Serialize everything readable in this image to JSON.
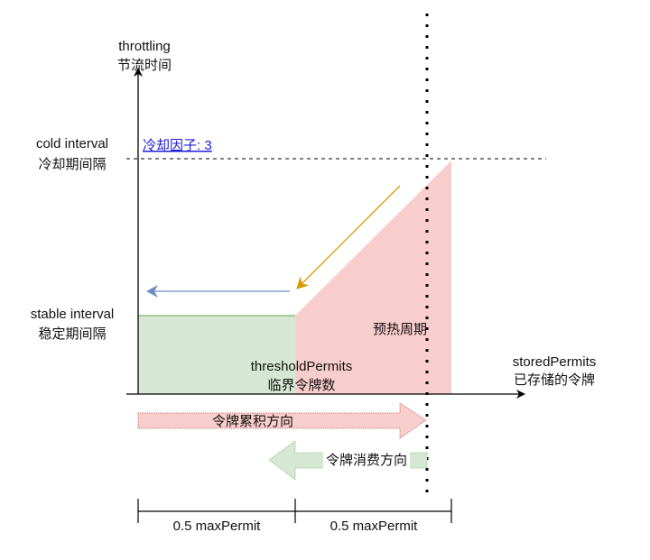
{
  "y_axis": {
    "label_en": "throttling",
    "label_zh": "节流时间"
  },
  "x_axis": {
    "label_en": "storedPermits",
    "label_zh": "已存储的令牌"
  },
  "cold_interval": {
    "label_en": "cold interval",
    "label_zh": "冷却期间隔"
  },
  "cold_factor": "冷却因子: 3",
  "stable_interval": {
    "label_en": "stable interval",
    "label_zh": "稳定期间隔"
  },
  "warmup_label": "预热周期",
  "threshold": {
    "label_en": "thresholdPermits",
    "label_zh": "临界令牌数"
  },
  "accumulate_direction": "令牌累积方向",
  "consume_direction": "令牌消费方向",
  "dimension": {
    "left": "0.5 maxPermit",
    "right": "0.5 maxPermit"
  },
  "colors": {
    "stable_fill": "#d5e8d4",
    "stable_stroke": "#82b366",
    "warmup_fill": "#f8cecc",
    "warmup_stroke": "#b85450",
    "gold_arrow": "#d79b00",
    "blue_arrow": "#6c8ebf",
    "link": "#1a1adb"
  }
}
